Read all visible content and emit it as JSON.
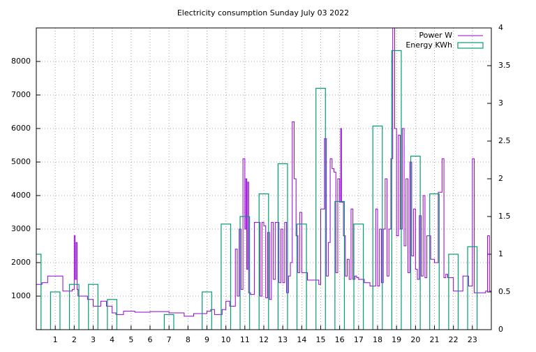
{
  "chart_data": {
    "type": "line",
    "title": "Electricity consumption Sunday July 03 2022",
    "xlim": [
      0,
      24
    ],
    "xticks": [
      1,
      2,
      3,
      4,
      5,
      6,
      7,
      8,
      9,
      10,
      11,
      12,
      13,
      14,
      15,
      16,
      17,
      18,
      19,
      20,
      21,
      22,
      23
    ],
    "ylim": [
      0,
      9000
    ],
    "yticks": [
      1000,
      2000,
      3000,
      4000,
      5000,
      6000,
      7000,
      8000
    ],
    "y2lim": [
      0,
      4
    ],
    "y2ticks": [
      0,
      0.5,
      1,
      1.5,
      2,
      2.5,
      3,
      3.5,
      4
    ],
    "grid": true,
    "legend": "top-right",
    "series": [
      {
        "name": "Power W",
        "color": "#9400d3",
        "type": "line",
        "x": [
          0,
          0.3,
          0.6,
          1.4,
          1.9,
          2.0,
          2.05,
          2.1,
          2.15,
          2.2,
          2.7,
          3.0,
          3.4,
          3.7,
          4.0,
          4.2,
          4.6,
          5.2,
          6.0,
          7.0,
          7.8,
          8.3,
          9.0,
          9.2,
          9.4,
          9.8,
          10.0,
          10.2,
          10.5,
          10.6,
          10.7,
          10.8,
          10.9,
          11.0,
          11.05,
          11.1,
          11.15,
          11.2,
          11.3,
          11.5,
          11.8,
          11.9,
          12.0,
          12.1,
          12.2,
          12.3,
          12.4,
          12.5,
          12.6,
          12.8,
          12.9,
          13.0,
          13.1,
          13.2,
          13.3,
          13.4,
          13.5,
          13.6,
          13.7,
          13.8,
          13.9,
          14.0,
          14.3,
          14.9,
          15.0,
          15.2,
          15.3,
          15.4,
          15.5,
          15.6,
          15.7,
          15.8,
          15.9,
          16.0,
          16.05,
          16.1,
          16.2,
          16.3,
          16.4,
          16.5,
          16.6,
          16.7,
          16.8,
          16.9,
          17.0,
          17.3,
          17.6,
          17.9,
          18.0,
          18.1,
          18.2,
          18.3,
          18.4,
          18.5,
          18.6,
          18.7,
          18.8,
          18.9,
          19.0,
          19.1,
          19.2,
          19.3,
          19.4,
          19.5,
          19.6,
          19.7,
          19.8,
          19.9,
          20.0,
          20.1,
          20.2,
          20.3,
          20.4,
          20.5,
          20.6,
          20.8,
          21.0,
          21.2,
          21.4,
          21.5,
          21.6,
          21.7,
          22.0,
          22.5,
          22.8,
          23.0,
          23.1,
          23.4,
          23.7,
          23.8,
          23.9,
          24.0
        ],
        "values": [
          1350,
          1400,
          1600,
          1150,
          1200,
          2800,
          1500,
          2600,
          1200,
          1000,
          900,
          700,
          850,
          700,
          500,
          450,
          550,
          520,
          540,
          500,
          400,
          480,
          550,
          600,
          450,
          600,
          850,
          700,
          2400,
          1000,
          3000,
          1200,
          5100,
          3000,
          4500,
          1800,
          4400,
          1100,
          1050,
          3200,
          1000,
          3200,
          3100,
          950,
          2900,
          900,
          3200,
          1500,
          3200,
          1400,
          3000,
          1400,
          3200,
          1100,
          1600,
          2000,
          6200,
          4500,
          2800,
          1700,
          3500,
          1700,
          1480,
          1350,
          3600,
          5700,
          1600,
          2600,
          5100,
          4800,
          4700,
          1700,
          4500,
          3800,
          6000,
          3800,
          2800,
          1600,
          2100,
          1500,
          3600,
          1500,
          1600,
          1550,
          1500,
          1400,
          1300,
          3600,
          1300,
          3000,
          1400,
          3000,
          4500,
          1600,
          3000,
          5100,
          9000,
          6000,
          2800,
          5800,
          3000,
          6000,
          2500,
          4500,
          1700,
          5000,
          2200,
          3600,
          1800,
          1500,
          3400,
          1600,
          4000,
          1550,
          2800,
          2100,
          2000,
          4100,
          5100,
          1550,
          1650,
          1550,
          1150,
          1600,
          1300,
          5100,
          1100,
          1100,
          1150,
          2800,
          1150,
          3000
        ]
      },
      {
        "name": "Energy KWh",
        "color": "#009e73",
        "type": "bar",
        "axis": "y2",
        "x": [
          0,
          1,
          2,
          3,
          4,
          5,
          6,
          7,
          8,
          9,
          10,
          11,
          12,
          13,
          14,
          15,
          16,
          17,
          18,
          19,
          20,
          21,
          22,
          23
        ],
        "values": [
          1.0,
          0.5,
          0.6,
          0.6,
          0.4,
          0,
          0,
          0.2,
          0,
          0.5,
          1.4,
          1.5,
          1.8,
          2.2,
          1.4,
          3.2,
          1.7,
          1.4,
          2.7,
          3.7,
          2.3,
          1.8,
          1.0,
          1.1
        ]
      }
    ]
  }
}
